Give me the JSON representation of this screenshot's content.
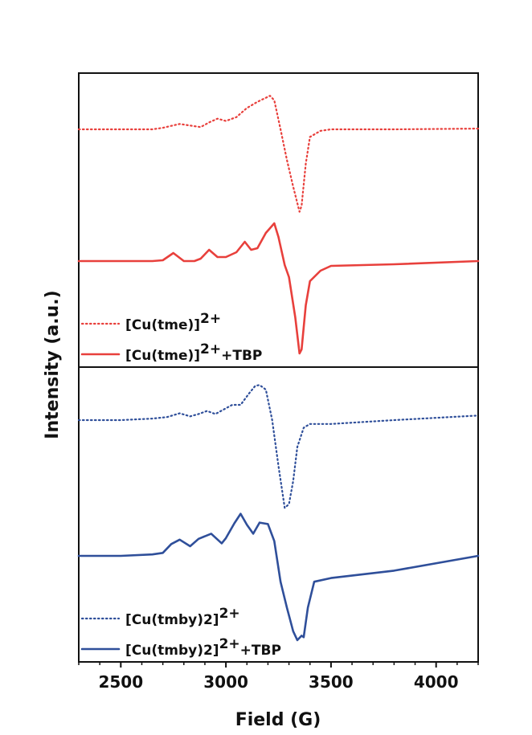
{
  "chart_data": {
    "type": "line",
    "xlabel": "Field (G)",
    "ylabel": "Intensity (a.u.)",
    "xlim": [
      2300,
      4200
    ],
    "x_ticks": [
      2500,
      3000,
      3500,
      4000
    ],
    "x_tick_labels": [
      "2500",
      "3000",
      "3500",
      "4000"
    ],
    "grid": false,
    "panels": [
      {
        "legend_position": "bottom-left",
        "series": [
          {
            "name": "[Cu(tme)]",
            "superscript": "2+",
            "suffix": "",
            "color": "#e8403c",
            "style": "dotted",
            "x": [
              2300,
              2500,
              2650,
              2700,
              2780,
              2830,
              2880,
              2920,
              2960,
              3000,
              3050,
              3100,
              3150,
              3180,
              3210,
              3230,
              3260,
              3290,
              3320,
              3350,
              3360,
              3380,
              3400,
              3450,
              3500,
              3800,
              4200
            ],
            "y": [
              0.0,
              0.0,
              0.0,
              0.02,
              0.07,
              0.05,
              0.03,
              0.09,
              0.14,
              0.11,
              0.16,
              0.28,
              0.36,
              0.4,
              0.44,
              0.38,
              0.0,
              -0.4,
              -0.75,
              -1.08,
              -1.0,
              -0.45,
              -0.1,
              -0.02,
              0.0,
              0.0,
              0.01
            ]
          },
          {
            "name": "[Cu(tme)]",
            "superscript": "2+",
            "suffix": "+TBP",
            "color": "#e8403c",
            "style": "solid",
            "x": [
              2300,
              2500,
              2650,
              2700,
              2750,
              2800,
              2850,
              2880,
              2920,
              2960,
              3000,
              3050,
              3090,
              3120,
              3150,
              3190,
              3230,
              3250,
              3280,
              3300,
              3330,
              3350,
              3360,
              3380,
              3400,
              3450,
              3500,
              3800,
              4200
            ],
            "y": [
              0.0,
              0.0,
              0.0,
              0.01,
              0.1,
              0.0,
              0.0,
              0.03,
              0.14,
              0.05,
              0.05,
              0.11,
              0.24,
              0.14,
              0.16,
              0.35,
              0.47,
              0.3,
              -0.05,
              -0.2,
              -0.7,
              -1.15,
              -1.1,
              -0.55,
              -0.25,
              -0.12,
              -0.06,
              -0.04,
              0.0
            ]
          }
        ]
      },
      {
        "legend_position": "bottom-left",
        "series": [
          {
            "name": "[Cu(tmby)2]",
            "superscript": "2+",
            "suffix": "",
            "color": "#2f4f9a",
            "style": "dotted",
            "x": [
              2300,
              2500,
              2650,
              2720,
              2780,
              2830,
              2870,
              2910,
              2950,
              2990,
              3030,
              3070,
              3110,
              3140,
              3160,
              3190,
              3220,
              3250,
              3280,
              3300,
              3320,
              3340,
              3370,
              3400,
              3500,
              3800,
              4200
            ],
            "y": [
              0.0,
              0.0,
              0.02,
              0.04,
              0.09,
              0.05,
              0.08,
              0.12,
              0.08,
              0.14,
              0.2,
              0.2,
              0.35,
              0.45,
              0.46,
              0.4,
              0.0,
              -0.6,
              -1.15,
              -1.1,
              -0.8,
              -0.35,
              -0.1,
              -0.05,
              -0.05,
              0.0,
              0.06
            ]
          },
          {
            "name": "[Cu(tmby)2]",
            "superscript": "2+",
            "suffix": "+TBP",
            "color": "#2f4f9a",
            "style": "solid",
            "x": [
              2300,
              2500,
              2650,
              2700,
              2740,
              2780,
              2830,
              2870,
              2930,
              2980,
              3000,
              3040,
              3070,
              3100,
              3130,
              3160,
              3200,
              3230,
              3260,
              3290,
              3320,
              3340,
              3360,
              3370,
              3390,
              3420,
              3500,
              3800,
              4200
            ],
            "y": [
              0.0,
              0.0,
              0.02,
              0.04,
              0.16,
              0.22,
              0.13,
              0.23,
              0.3,
              0.17,
              0.24,
              0.44,
              0.57,
              0.42,
              0.3,
              0.45,
              0.43,
              0.2,
              -0.35,
              -0.7,
              -1.02,
              -1.14,
              -1.08,
              -1.1,
              -0.7,
              -0.35,
              -0.3,
              -0.2,
              0.0
            ]
          }
        ]
      }
    ]
  }
}
